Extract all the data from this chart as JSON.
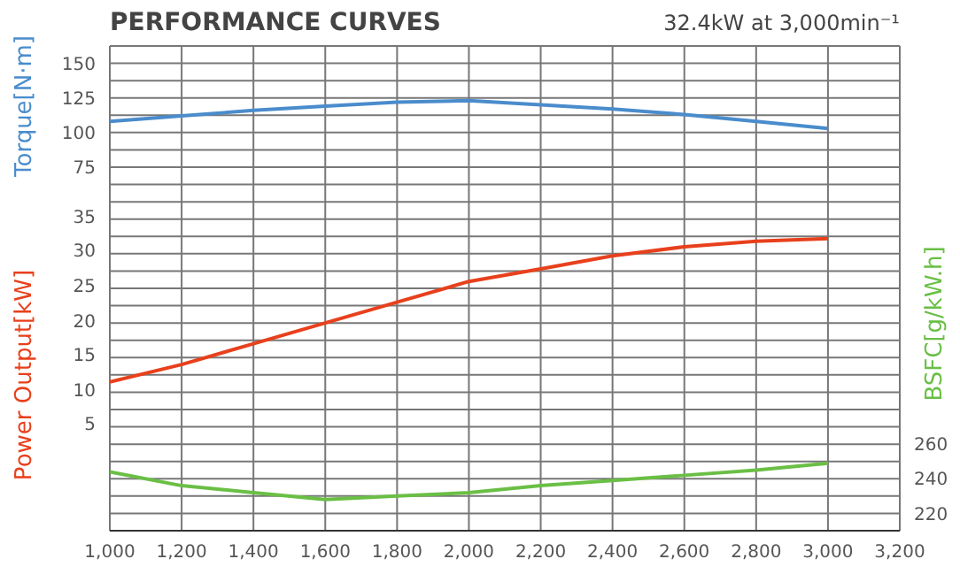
{
  "chart_data": {
    "type": "line",
    "title": "PERFORMANCE CURVES",
    "subtitle": "32.4kW at 3,000min⁻¹",
    "ylabel": "Torque[N·m]",
    "y2label": "BSFC[g/kW.h]",
    "y3label": "Power Output[kW]",
    "x": [
      1000,
      1200,
      1400,
      1600,
      1800,
      2000,
      2200,
      2400,
      2600,
      2800,
      3000
    ],
    "series": [
      {
        "axis": "y",
        "color": "#4a8ccc",
        "values": [
          108,
          112,
          116,
          119,
          122,
          123,
          120,
          117,
          113,
          108,
          103
        ]
      },
      {
        "axis": "y3",
        "color": "#e8401c",
        "values": [
          11.5,
          14,
          17,
          20,
          23,
          26,
          27.8,
          29.7,
          31,
          31.8,
          32.2
        ]
      },
      {
        "axis": "y2",
        "color": "#6abf45",
        "values": [
          244,
          236,
          232,
          228,
          230,
          232,
          236,
          239,
          242,
          245,
          249
        ]
      }
    ],
    "xlim": [
      1000,
      3200
    ],
    "xticks": [
      {
        "value": 1000,
        "label": "1,000"
      },
      {
        "value": 1200,
        "label": "1,200"
      },
      {
        "value": 1400,
        "label": "1,400"
      },
      {
        "value": 1600,
        "label": "1,600"
      },
      {
        "value": 1800,
        "label": "1,800"
      },
      {
        "value": 2000,
        "label": "2,000"
      },
      {
        "value": 2200,
        "label": "2,200"
      },
      {
        "value": 2400,
        "label": "2,400"
      },
      {
        "value": 2600,
        "label": "2,600"
      },
      {
        "value": 2800,
        "label": "2,800"
      },
      {
        "value": 3000,
        "label": "3,000"
      },
      {
        "value": 3200,
        "label": "3,200"
      }
    ],
    "ylim": [
      -187.5,
      162.5
    ],
    "yticks": [
      75,
      100,
      125,
      150
    ],
    "y2lim": [
      210,
      490
    ],
    "y2ticks": [
      220,
      240,
      260
    ],
    "y3lim": [
      -10,
      60
    ],
    "y3ticks": [
      5,
      10,
      15,
      20,
      25,
      30,
      35
    ],
    "grid": true,
    "marker": "none",
    "line_style": "solid"
  }
}
